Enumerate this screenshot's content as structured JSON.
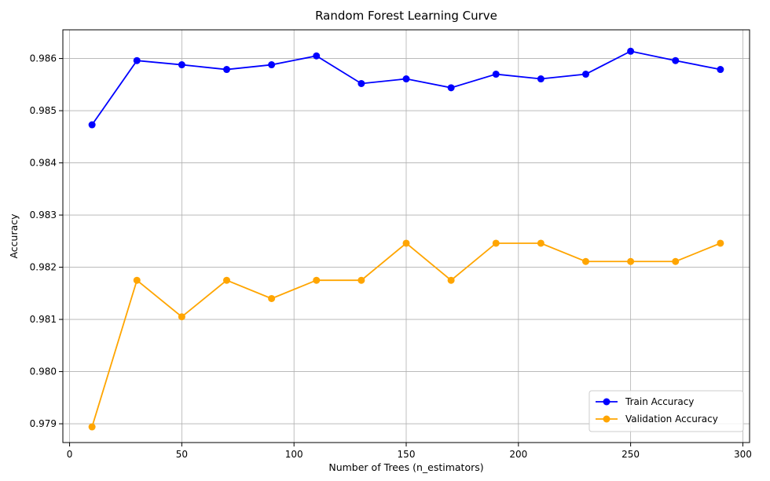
{
  "chart_data": {
    "type": "line",
    "title": "Random Forest Learning Curve",
    "xlabel": "Number of Trees (n_estimators)",
    "ylabel": "Accuracy",
    "xlim": [
      -3,
      303
    ],
    "ylim": [
      0.97864,
      0.98655
    ],
    "xticks": [
      0,
      50,
      100,
      150,
      200,
      250,
      300
    ],
    "yticks": [
      0.979,
      0.98,
      0.981,
      0.982,
      0.983,
      0.984,
      0.985,
      0.986
    ],
    "ytick_labels": [
      "0.979",
      "0.980",
      "0.981",
      "0.982",
      "0.983",
      "0.984",
      "0.985",
      "0.986"
    ],
    "grid": true,
    "legend_position": "lower-right",
    "x": [
      10,
      30,
      50,
      70,
      90,
      110,
      130,
      150,
      170,
      190,
      210,
      230,
      250,
      270,
      290
    ],
    "series": [
      {
        "name": "Train Accuracy",
        "color": "#0000ff",
        "values": [
          0.98473,
          0.98596,
          0.98588,
          0.98579,
          0.98588,
          0.98605,
          0.98552,
          0.98561,
          0.98544,
          0.9857,
          0.98561,
          0.9857,
          0.98614,
          0.98596,
          0.98579
        ]
      },
      {
        "name": "Validation Accuracy",
        "color": "#ffa500",
        "values": [
          0.97894,
          0.98175,
          0.98105,
          0.98175,
          0.9814,
          0.98175,
          0.98175,
          0.98246,
          0.98175,
          0.98246,
          0.98246,
          0.98211,
          0.98211,
          0.98211,
          0.98246
        ]
      }
    ]
  }
}
